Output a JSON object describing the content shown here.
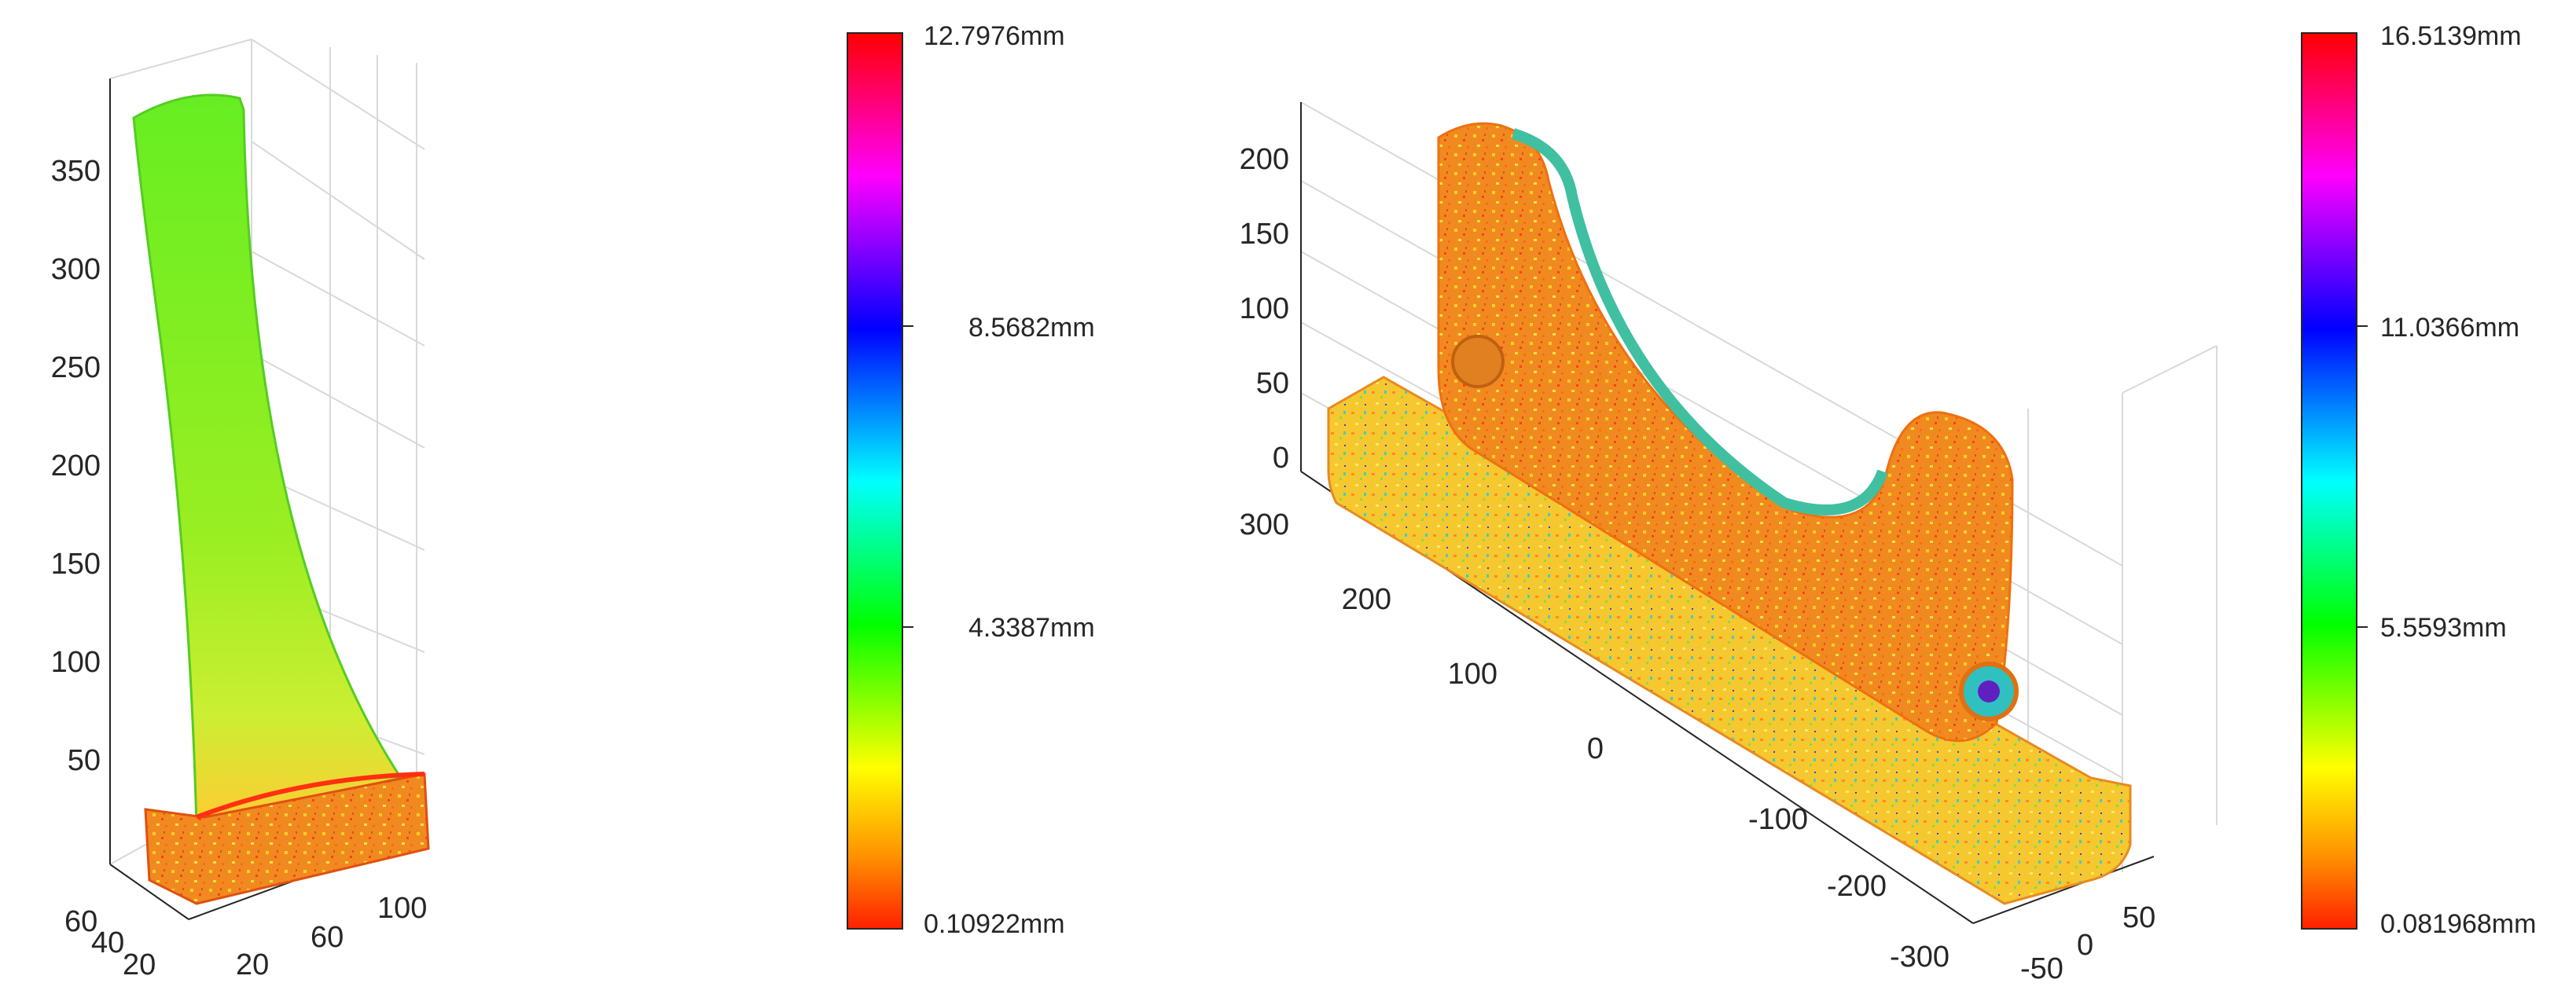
{
  "left_plot": {
    "z_ticks": [
      "50",
      "100",
      "150",
      "200",
      "250",
      "300",
      "350"
    ],
    "x_ticks": [
      "20",
      "60",
      "100"
    ],
    "y_ticks": [
      "60",
      "40",
      "20"
    ]
  },
  "left_colorbar": {
    "labels": [
      "12.7976mm",
      "8.5682mm",
      "4.3387mm",
      "0.10922mm"
    ]
  },
  "right_plot": {
    "z_ticks": [
      "0",
      "50",
      "100",
      "150",
      "200"
    ],
    "y_ticks": [
      "300",
      "200",
      "100",
      "0",
      "-100",
      "-200",
      "-300"
    ],
    "x_ticks": [
      "-50",
      "0",
      "50"
    ]
  },
  "right_colorbar": {
    "labels": [
      "16.5139mm",
      "11.0366mm",
      "5.5593mm",
      "0.081968mm"
    ]
  },
  "colormap": [
    "#ff0000",
    "#ff00ff",
    "#0000ff",
    "#00ffff",
    "#00ff00",
    "#ffff00",
    "#ff8000",
    "#ff2000"
  ]
}
